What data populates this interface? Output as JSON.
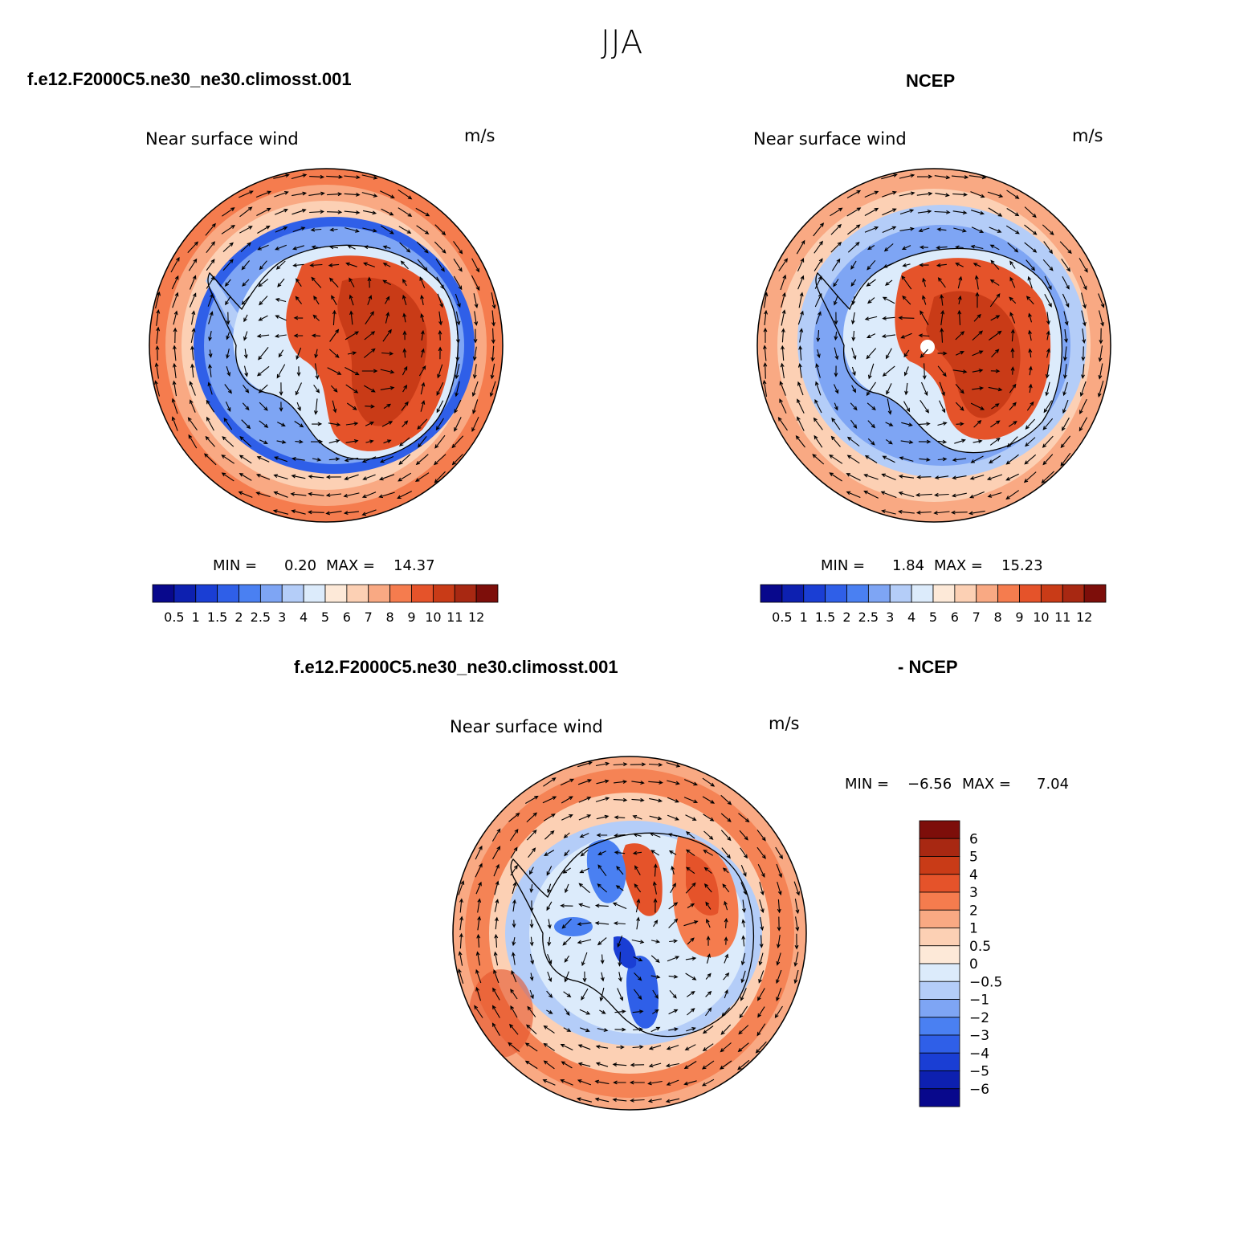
{
  "figure": {
    "title": "JJA"
  },
  "panels": [
    {
      "id": "model",
      "case_name": "f.e12.F2000C5.ne30_ne30.climosst.001",
      "variable": "Near surface wind",
      "units": "m/s",
      "min_label": "MIN =",
      "min_value": "0.20",
      "max_label": "MAX =",
      "max_value": "14.37"
    },
    {
      "id": "obs",
      "case_name": "NCEP",
      "variable": "Near surface wind",
      "units": "m/s",
      "min_label": "MIN =",
      "min_value": "1.84",
      "max_label": "MAX =",
      "max_value": "15.23"
    },
    {
      "id": "diff",
      "case_name": "f.e12.F2000C5.ne30_ne30.climosst.001",
      "case_name_2": "- NCEP",
      "variable": "Near surface wind",
      "units": "m/s",
      "min_label": "MIN =",
      "min_value": "−6.56",
      "max_label": "MAX =",
      "max_value": "7.04"
    }
  ],
  "chart_data": [
    {
      "type": "heatmap",
      "projection": "south-polar-stereographic",
      "title": "Near surface wind",
      "units": "m/s",
      "min": 0.2,
      "max": 14.37,
      "colorbar": {
        "orientation": "horizontal",
        "levels": [
          "0.5",
          "1",
          "1.5",
          "2",
          "2.5",
          "3",
          "4",
          "5",
          "6",
          "7",
          "8",
          "9",
          "10",
          "11",
          "12"
        ],
        "colors": [
          "#08088c",
          "#0d20b0",
          "#1a3ed4",
          "#2f5fe8",
          "#4a80f2",
          "#7ea5f4",
          "#b4cdf8",
          "#dcebfb",
          "#fde9d8",
          "#fcd0b4",
          "#f9a983",
          "#f57c4e",
          "#e5532a",
          "#c93b17",
          "#a82812",
          "#7d0e0a"
        ]
      },
      "vectors": "wind arrows"
    },
    {
      "type": "heatmap",
      "projection": "south-polar-stereographic",
      "title": "Near surface wind",
      "units": "m/s",
      "min": 1.84,
      "max": 15.23,
      "colorbar": {
        "orientation": "horizontal",
        "levels": [
          "0.5",
          "1",
          "1.5",
          "2",
          "2.5",
          "3",
          "4",
          "5",
          "6",
          "7",
          "8",
          "9",
          "10",
          "11",
          "12"
        ],
        "colors": [
          "#08088c",
          "#0d20b0",
          "#1a3ed4",
          "#2f5fe8",
          "#4a80f2",
          "#7ea5f4",
          "#b4cdf8",
          "#dcebfb",
          "#fde9d8",
          "#fcd0b4",
          "#f9a983",
          "#f57c4e",
          "#e5532a",
          "#c93b17",
          "#a82812",
          "#7d0e0a"
        ]
      },
      "vectors": "wind arrows"
    },
    {
      "type": "heatmap",
      "projection": "south-polar-stereographic",
      "title": "Near surface wind",
      "units": "m/s",
      "min": -6.56,
      "max": 7.04,
      "colorbar": {
        "orientation": "vertical",
        "levels": [
          "6",
          "5",
          "4",
          "3",
          "2",
          "1",
          "0.5",
          "0",
          "−0.5",
          "−1",
          "−2",
          "−3",
          "−4",
          "−5",
          "−6"
        ],
        "colors": [
          "#7d0e0a",
          "#a82812",
          "#c93b17",
          "#e5532a",
          "#f57c4e",
          "#f9a983",
          "#fcd0b4",
          "#fde9d8",
          "#dcebfb",
          "#b4cdf8",
          "#7ea5f4",
          "#4a80f2",
          "#2f5fe8",
          "#1a3ed4",
          "#0d20b0",
          "#08088c"
        ]
      },
      "vectors": "wind arrows"
    }
  ]
}
